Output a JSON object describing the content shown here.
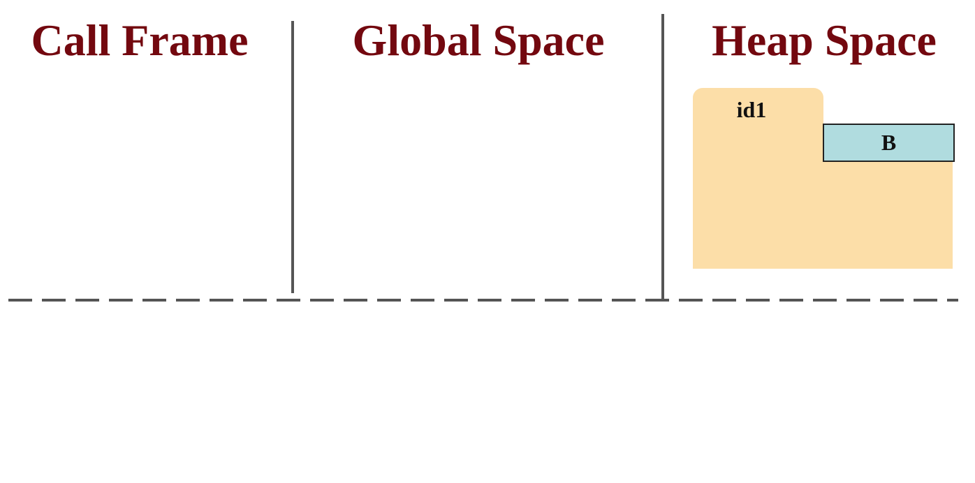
{
  "headings": {
    "call_frame": "Call Frame",
    "global_space": "Global Space",
    "heap_space": "Heap Space"
  },
  "heap": {
    "folders": [
      {
        "id": "id1",
        "class_name": "B"
      }
    ]
  },
  "colors": {
    "heading": "#73080f",
    "divider": "#555555",
    "folder": "#fcdea8",
    "class_box": "#b0dcdf"
  }
}
